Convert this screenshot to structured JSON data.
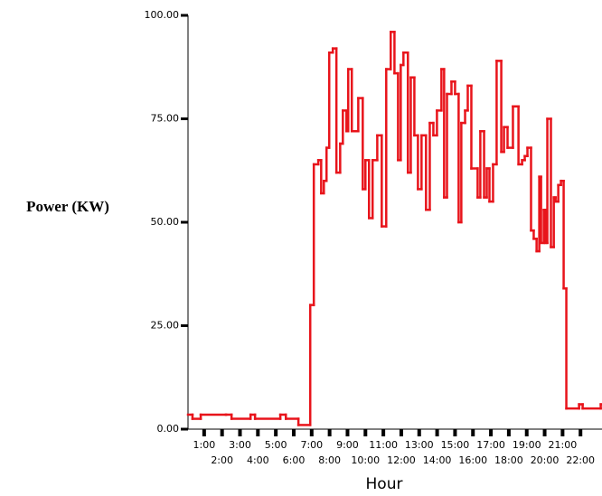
{
  "chart_data": {
    "type": "step-line",
    "y_label": "Power (KW)",
    "x_label": "Hour",
    "x": [
      0.1,
      0.35,
      0.81,
      2.22,
      2.53,
      3.59,
      3.84,
      5.25,
      5.56,
      6.26,
      6.92,
      7.12,
      7.37,
      7.53,
      7.68,
      7.83,
      7.98,
      8.18,
      8.38,
      8.59,
      8.74,
      8.94,
      9.04,
      9.24,
      9.6,
      9.85,
      10.0,
      10.2,
      10.4,
      10.66,
      10.91,
      11.16,
      11.41,
      11.62,
      11.82,
      11.97,
      12.12,
      12.37,
      12.53,
      12.73,
      12.93,
      13.13,
      13.38,
      13.59,
      13.79,
      13.99,
      14.24,
      14.39,
      14.55,
      14.8,
      15.0,
      15.2,
      15.35,
      15.56,
      15.71,
      15.91,
      16.26,
      16.41,
      16.62,
      16.77,
      16.92,
      17.12,
      17.32,
      17.58,
      17.73,
      17.93,
      18.23,
      18.54,
      18.74,
      18.89,
      19.04,
      19.24,
      19.39,
      19.55,
      19.7,
      19.8,
      19.95,
      20.05,
      20.15,
      20.35,
      20.51,
      20.61,
      20.76,
      20.91,
      21.06,
      21.21,
      21.92,
      22.12,
      23.13
    ],
    "series": [
      {
        "name": "Power",
        "color": "#e8141b",
        "values": [
          3.5,
          2.5,
          3.5,
          3.5,
          2.5,
          3.5,
          2.5,
          3.5,
          2.5,
          1,
          30,
          64,
          65,
          57,
          60,
          68,
          91,
          92,
          62,
          69,
          77,
          72,
          87,
          72,
          80,
          58,
          65,
          51,
          65,
          71,
          49,
          87,
          96,
          86,
          65,
          88,
          91,
          62,
          85,
          71,
          58,
          71,
          53,
          74,
          71,
          77,
          87,
          56,
          81,
          84,
          81,
          50,
          74,
          77,
          83,
          63,
          56,
          72,
          56,
          63,
          55,
          64,
          89,
          67,
          73,
          68,
          78,
          64,
          65,
          66,
          68,
          48,
          46,
          43,
          61,
          45,
          53,
          45,
          75,
          44,
          56,
          55,
          59,
          60,
          34,
          5,
          6,
          5,
          6
        ]
      }
    ],
    "xlim": [
      0.1,
      23.2
    ],
    "xticks": [
      {
        "value": 1,
        "label": "1:00"
      },
      {
        "value": 2,
        "label": "2:00"
      },
      {
        "value": 3,
        "label": "3:00"
      },
      {
        "value": 4,
        "label": "4:00"
      },
      {
        "value": 5,
        "label": "5:00"
      },
      {
        "value": 6,
        "label": "6:00"
      },
      {
        "value": 7,
        "label": "7:00"
      },
      {
        "value": 8,
        "label": "8:00"
      },
      {
        "value": 9,
        "label": "9:00"
      },
      {
        "value": 10,
        "label": "10:00"
      },
      {
        "value": 11,
        "label": "11:00"
      },
      {
        "value": 12,
        "label": "12:00"
      },
      {
        "value": 13,
        "label": "13:00"
      },
      {
        "value": 14,
        "label": "14:00"
      },
      {
        "value": 15,
        "label": "15:00"
      },
      {
        "value": 16,
        "label": "16:00"
      },
      {
        "value": 17,
        "label": "17:00"
      },
      {
        "value": 18,
        "label": "18:00"
      },
      {
        "value": 19,
        "label": "19:00"
      },
      {
        "value": 20,
        "label": "20:00"
      },
      {
        "value": 21,
        "label": "21:00"
      },
      {
        "value": 22,
        "label": "22:00"
      }
    ],
    "ylim": [
      0,
      100
    ],
    "yticks": [
      {
        "value": 0,
        "label": "0.00"
      },
      {
        "value": 25,
        "label": "25.00"
      },
      {
        "value": 50,
        "label": "50.00"
      },
      {
        "value": 75,
        "label": "75.00"
      },
      {
        "value": 100,
        "label": "100.00"
      }
    ],
    "grid": false
  }
}
